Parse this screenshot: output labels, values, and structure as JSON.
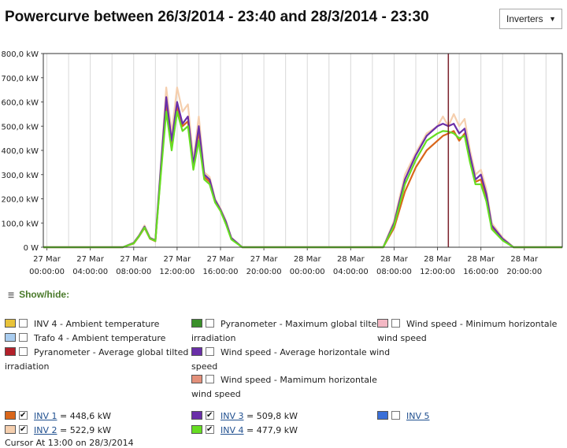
{
  "header": {
    "title": "Powercurve between 26/3/2014 - 23:40 and 28/3/2014 - 23:30",
    "dropdown_value": "Inverters"
  },
  "chart_data": {
    "type": "line",
    "ylim": [
      0,
      800
    ],
    "y_ticks": [
      "0 W",
      "100,0 kW",
      "200,0 kW",
      "300,0 kW",
      "400,0 kW",
      "500,0 kW",
      "600,0 kW",
      "700,0 kW",
      "800,0 kW"
    ],
    "x_ticks": [
      [
        "27 Mar",
        "00:00:00"
      ],
      [
        "27 Mar",
        "04:00:00"
      ],
      [
        "27 Mar",
        "08:00:00"
      ],
      [
        "27 Mar",
        "12:00:00"
      ],
      [
        "27 Mar",
        "16:00:00"
      ],
      [
        "27 Mar",
        "20:00:00"
      ],
      [
        "28 Mar",
        "00:00:00"
      ],
      [
        "28 Mar",
        "04:00:00"
      ],
      [
        "28 Mar",
        "08:00:00"
      ],
      [
        "28 Mar",
        "12:00:00"
      ],
      [
        "28 Mar",
        "16:00:00"
      ],
      [
        "28 Mar",
        "20:00:00"
      ]
    ],
    "x_hours_range": [
      -0.33,
      47.5
    ],
    "cursor_hour": 37.0,
    "grid": "vertical",
    "series": [
      {
        "name": "INV 2",
        "color": "#f5cfae",
        "x": [
          7.0,
          8.0,
          8.5,
          9.0,
          9.5,
          10.0,
          10.5,
          11.0,
          11.5,
          12.0,
          12.5,
          13.0,
          13.5,
          14.0,
          14.5,
          15.0,
          15.5,
          16.0,
          16.5,
          17.0,
          18.0,
          31.0,
          32.0,
          33.0,
          34.0,
          35.0,
          36.0,
          36.5,
          37.0,
          37.5,
          38.0,
          38.5,
          39.0,
          39.5,
          40.0,
          40.5,
          41.0,
          42.0,
          43.0
        ],
        "y": [
          0,
          20,
          50,
          90,
          40,
          30,
          340,
          660,
          470,
          660,
          560,
          590,
          360,
          540,
          310,
          290,
          200,
          160,
          110,
          40,
          0,
          0,
          110,
          300,
          390,
          470,
          500,
          540,
          500,
          550,
          500,
          530,
          400,
          300,
          320,
          240,
          100,
          40,
          0
        ]
      },
      {
        "name": "INV 1",
        "color": "#d9661a",
        "x": [
          7.0,
          8.0,
          8.5,
          9.0,
          9.5,
          10.0,
          10.5,
          11.0,
          11.5,
          12.0,
          12.5,
          13.0,
          13.5,
          14.0,
          14.5,
          15.0,
          15.5,
          16.0,
          16.5,
          17.0,
          18.0,
          31.0,
          32.0,
          33.0,
          34.0,
          35.0,
          36.0,
          36.5,
          37.0,
          37.5,
          38.0,
          38.5,
          39.0,
          39.5,
          40.0,
          40.5,
          41.0,
          42.0,
          43.0
        ],
        "y": [
          0,
          15,
          45,
          80,
          35,
          25,
          310,
          600,
          420,
          580,
          500,
          520,
          330,
          480,
          290,
          270,
          190,
          150,
          100,
          35,
          0,
          0,
          80,
          230,
          330,
          400,
          440,
          460,
          470,
          480,
          440,
          470,
          360,
          270,
          280,
          200,
          80,
          30,
          0
        ]
      },
      {
        "name": "INV 3",
        "color": "#6a2fa8",
        "x": [
          7.0,
          8.0,
          8.5,
          9.0,
          9.5,
          10.0,
          10.5,
          11.0,
          11.5,
          12.0,
          12.5,
          13.0,
          13.5,
          14.0,
          14.5,
          15.0,
          15.5,
          16.0,
          16.5,
          17.0,
          18.0,
          31.0,
          32.0,
          33.0,
          34.0,
          35.0,
          36.0,
          36.5,
          37.0,
          37.5,
          38.0,
          38.5,
          39.0,
          39.5,
          40.0,
          40.5,
          41.0,
          42.0,
          43.0
        ],
        "y": [
          0,
          18,
          48,
          85,
          38,
          28,
          330,
          620,
          440,
          600,
          510,
          540,
          340,
          500,
          300,
          280,
          195,
          155,
          105,
          38,
          0,
          0,
          100,
          280,
          380,
          460,
          500,
          510,
          500,
          510,
          470,
          490,
          380,
          280,
          300,
          220,
          90,
          35,
          0
        ]
      },
      {
        "name": "INV 4",
        "color": "#66dd22",
        "x": [
          7.0,
          8.0,
          8.5,
          9.0,
          9.5,
          10.0,
          10.5,
          11.0,
          11.5,
          12.0,
          12.5,
          13.0,
          13.5,
          14.0,
          14.5,
          15.0,
          15.5,
          16.0,
          16.5,
          17.0,
          18.0,
          31.0,
          32.0,
          33.0,
          34.0,
          35.0,
          36.0,
          36.5,
          37.0,
          37.5,
          38.0,
          38.5,
          39.0,
          39.5,
          40.0,
          40.5,
          41.0,
          42.0,
          43.0
        ],
        "y": [
          0,
          16,
          46,
          82,
          36,
          26,
          300,
          560,
          400,
          560,
          480,
          500,
          320,
          440,
          280,
          260,
          185,
          150,
          95,
          32,
          0,
          0,
          90,
          260,
          360,
          440,
          470,
          480,
          478,
          470,
          450,
          460,
          350,
          260,
          260,
          190,
          75,
          28,
          0
        ]
      }
    ]
  },
  "showhide": {
    "label": "Show/hide:"
  },
  "legend": {
    "items": [
      {
        "label": "INV 4 - Ambient temperature",
        "color": "#e8c33a",
        "checked": false
      },
      {
        "label": "Trafo 4 - Ambient temperature",
        "color": "#a9cdf0",
        "checked": false
      },
      {
        "label": "Pyranometer - Average global tilted",
        "cont": "irradiation",
        "color": "#b3202a",
        "checked": false
      },
      {
        "label": "Pyranometer - Maximum global tilted",
        "cont": "irradiation",
        "color": "#3a8f2a",
        "checked": false
      },
      {
        "label": "Wind speed - Average horizontale wind",
        "cont": "speed",
        "color": "#6a2fa8",
        "checked": false
      },
      {
        "label": "Wind speed - Mamimum horizontale",
        "cont": "wind speed",
        "color": "#e3907a",
        "checked": false
      },
      {
        "label": "Wind speed - Minimum horizontale",
        "cont": "wind speed",
        "color": "#f4b8c4",
        "checked": false
      }
    ]
  },
  "inverters": [
    {
      "link": "INV 1",
      "value": "= 448,6  kW",
      "color": "#d9661a",
      "checked": true
    },
    {
      "link": "INV 2",
      "value": "= 522,9  kW",
      "color": "#f5cfae",
      "checked": true
    },
    {
      "link": "INV 3",
      "value": "= 509,8  kW",
      "color": "#6a2fa8",
      "checked": true
    },
    {
      "link": "INV 4",
      "value": "= 477,9  kW",
      "color": "#66dd22",
      "checked": true
    },
    {
      "link": "INV 5",
      "value": "",
      "color": "#3a6fd8",
      "checked": false
    }
  ],
  "cursor_text": "Cursor At 13:00 on 28/3/2014"
}
